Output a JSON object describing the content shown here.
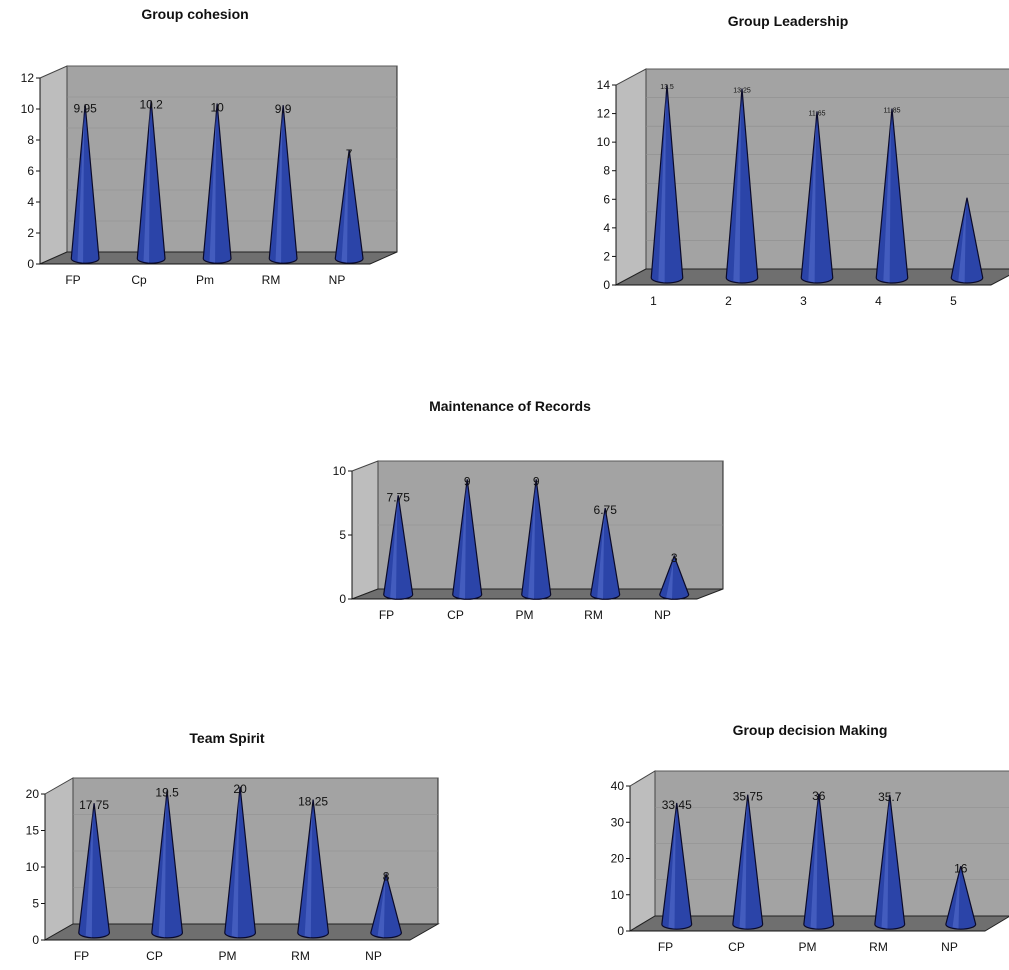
{
  "chart_data": [
    {
      "type": "bar",
      "title": "Group cohesion",
      "categories": [
        "FP",
        "Cp",
        "Pm",
        "RM",
        "NP"
      ],
      "values": [
        9.95,
        10.2,
        10,
        9.9,
        7
      ],
      "data_labels": [
        "9.95",
        "10.2",
        "10",
        "9.9",
        "7"
      ],
      "ylim": [
        0,
        12
      ],
      "yticks": [
        0,
        2,
        4,
        6,
        8,
        10,
        12
      ],
      "bar_shape": "cone",
      "bar_color": "#2b44a8",
      "wall_color": "#a3a3a3",
      "floor_color": "#6f6f6f"
    },
    {
      "type": "bar",
      "title": "Group Leadership",
      "categories": [
        "1",
        "2",
        "3",
        "4",
        "5"
      ],
      "values": [
        13.5,
        13.25,
        11.65,
        11.85,
        5.6
      ],
      "data_labels": [
        "13.5",
        "13.25",
        "11.65",
        "11.85",
        ""
      ],
      "ylim": [
        0,
        14
      ],
      "yticks": [
        0,
        2,
        4,
        6,
        8,
        10,
        12,
        14
      ],
      "bar_shape": "cone",
      "bar_color": "#2b44a8",
      "wall_color": "#a3a3a3",
      "floor_color": "#6f6f6f"
    },
    {
      "type": "bar",
      "title": "Maintenance of Records",
      "categories": [
        "FP",
        "CP",
        "PM",
        "RM",
        "NP"
      ],
      "values": [
        7.75,
        9,
        9,
        6.75,
        3
      ],
      "data_labels": [
        "7.75",
        "9",
        "9",
        "6.75",
        "3"
      ],
      "ylim": [
        0,
        10
      ],
      "yticks": [
        0,
        5,
        10
      ],
      "bar_shape": "cone",
      "bar_color": "#2b44a8",
      "wall_color": "#a3a3a3",
      "floor_color": "#6f6f6f"
    },
    {
      "type": "bar",
      "title": "Team Spirit",
      "categories": [
        "FP",
        "CP",
        "PM",
        "RM",
        "NP"
      ],
      "values": [
        17.75,
        19.5,
        20,
        18.25,
        8
      ],
      "data_labels": [
        "17.75",
        "19.5",
        "20",
        "18.25",
        "8"
      ],
      "ylim": [
        0,
        20
      ],
      "yticks": [
        0,
        5,
        10,
        15,
        20
      ],
      "bar_shape": "cone",
      "bar_color": "#2b44a8",
      "wall_color": "#a3a3a3",
      "floor_color": "#6f6f6f"
    },
    {
      "type": "bar",
      "title": "Group decision Making",
      "categories": [
        "FP",
        "CP",
        "PM",
        "RM",
        "NP"
      ],
      "values": [
        33.45,
        35.75,
        36,
        35.7,
        16
      ],
      "data_labels": [
        "33.45",
        "35.75",
        "36",
        "35.7",
        "16"
      ],
      "ylim": [
        0,
        40
      ],
      "yticks": [
        0,
        10,
        20,
        30,
        40
      ],
      "bar_shape": "cone",
      "bar_color": "#2b44a8",
      "wall_color": "#a3a3a3",
      "floor_color": "#6f6f6f"
    }
  ]
}
